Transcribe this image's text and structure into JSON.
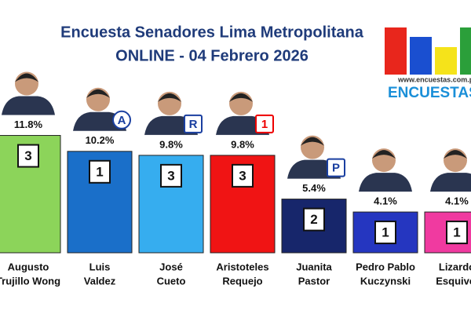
{
  "chart_data": {
    "type": "bar",
    "title": "Encuesta Senadores Lima Metropolitana",
    "subtitle": "ONLINE - 04 Febrero 2026",
    "source": "www.encuestas.com.pe",
    "brand": "ENCUESTAS",
    "categories": [
      [
        "Augusto",
        "Trujillo Wong"
      ],
      [
        "Luis",
        "Valdez"
      ],
      [
        "José",
        "Cueto"
      ],
      [
        "Aristoteles",
        "Requejo"
      ],
      [
        "Juanita",
        "Pastor"
      ],
      [
        "Pedro Pablo",
        "Kuczynski"
      ],
      [
        "Lizardo",
        "Esquivel"
      ]
    ],
    "values": [
      11.8,
      10.2,
      9.8,
      9.8,
      5.4,
      4.1,
      4.1
    ],
    "value_labels": [
      "11.8%",
      "10.2%",
      "9.8%",
      "9.8%",
      "5.4%",
      "4.1%",
      "4.1%"
    ],
    "box_labels": [
      3,
      1,
      3,
      3,
      2,
      1,
      1
    ],
    "logos": [
      "A",
      "R",
      "1",
      "P"
    ],
    "colors": [
      "#8cd45a",
      "#1a6fc9",
      "#36adef",
      "#f01414",
      "#17266b",
      "#2536c0",
      "#f03aa0"
    ],
    "ylim": [
      0,
      12
    ]
  }
}
